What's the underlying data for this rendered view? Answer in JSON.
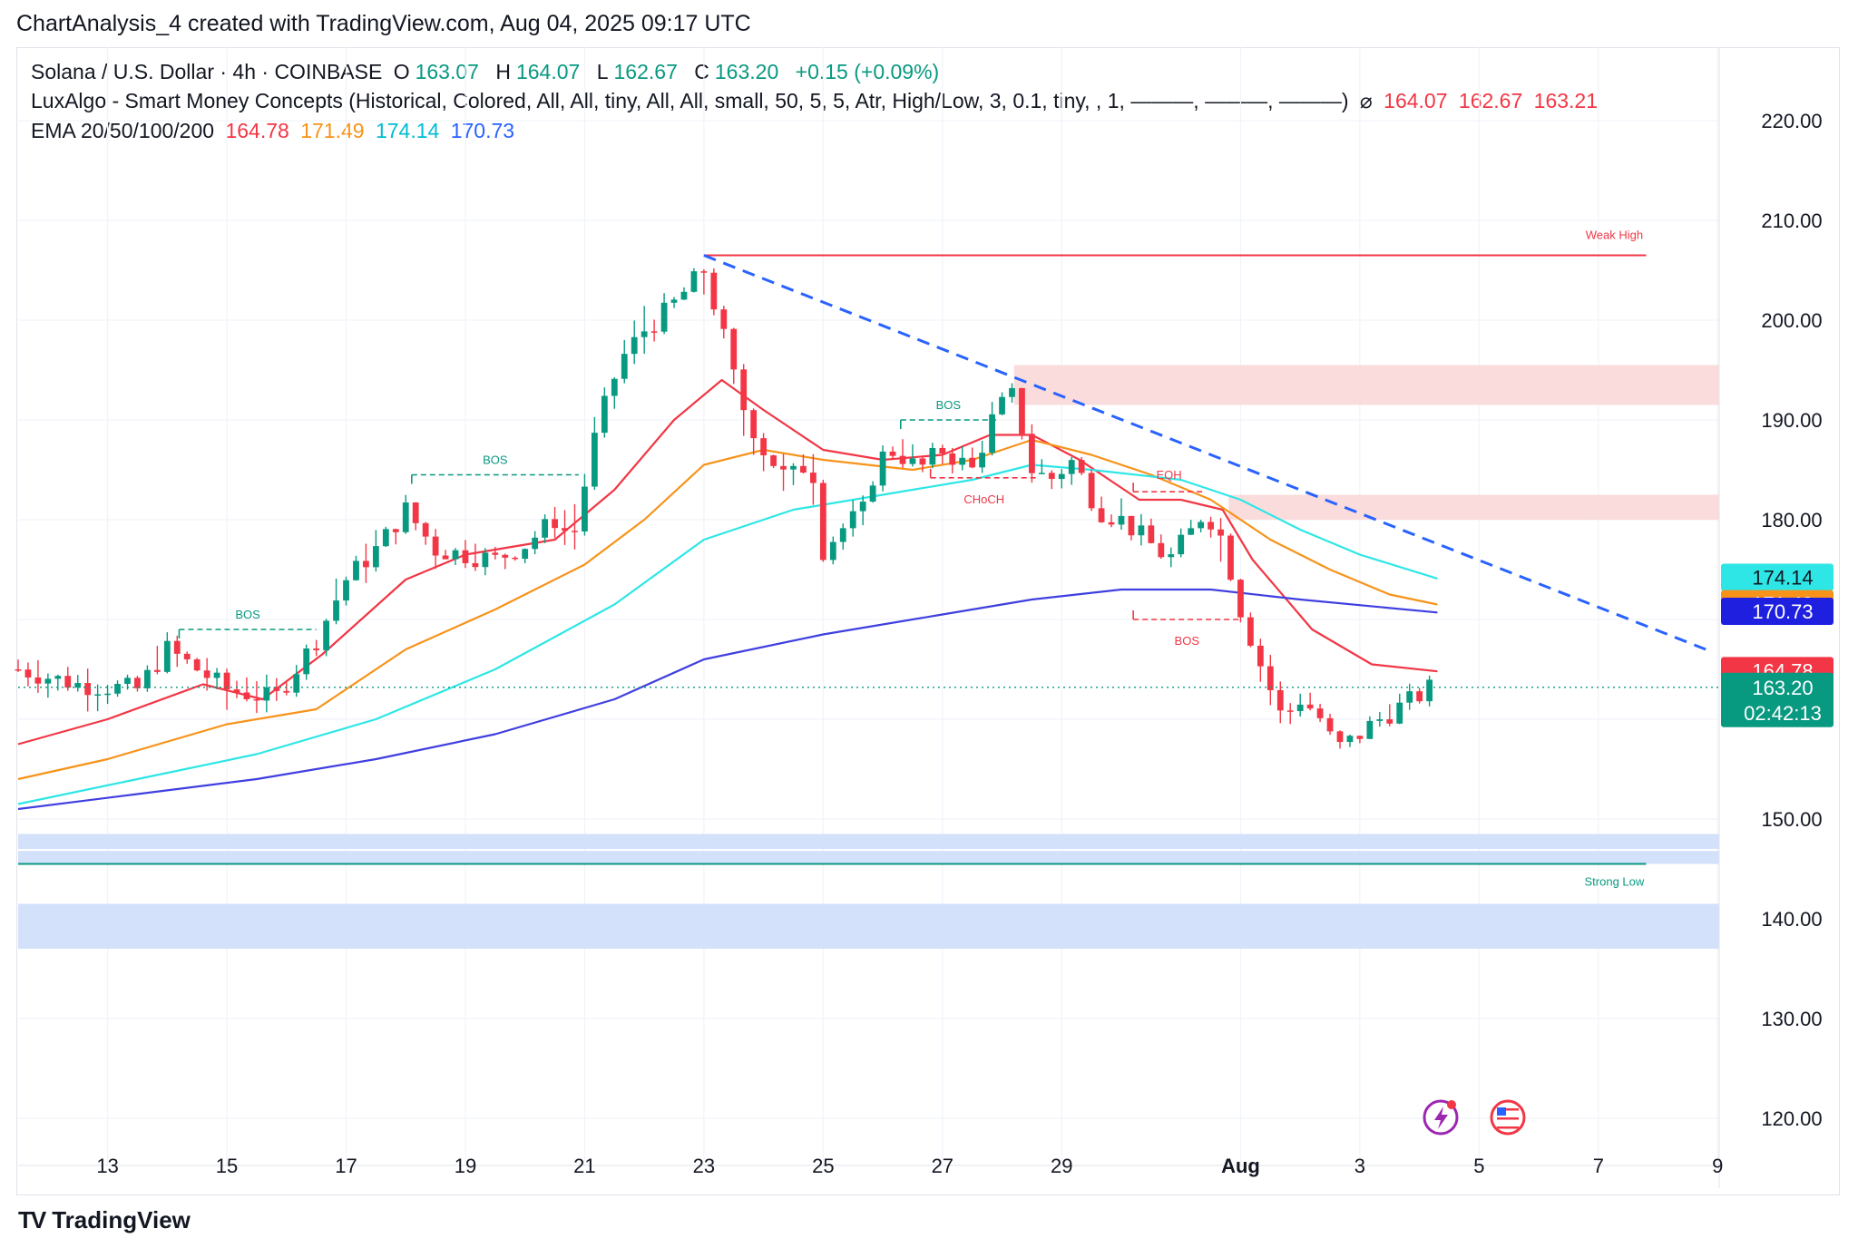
{
  "caption": "ChartAnalysis_4 created with TradingView.com, Aug 04, 2025 09:17 UTC",
  "legend": {
    "symbol": "Solana / U.S. Dollar · 4h · COINBASE",
    "o_label": "O",
    "o": "163.07",
    "h_label": "H",
    "h": "164.07",
    "l_label": "L",
    "l": "162.67",
    "c_label": "C",
    "c": "163.20",
    "chg": "+0.15 (+0.09%)",
    "indicator": "LuxAlgo - Smart Money Concepts (Historical, Colored, All, All, tiny, All, All, small, 50, 5, 5, Atr, High/Low, 3, 0.1, tiny, , 1, ———, ———, ———)",
    "ind_symbol": "⌀",
    "ind_v1": "164.07",
    "ind_v2": "162.67",
    "ind_v3": "163.21",
    "ema_label": "EMA 20/50/100/200",
    "ema20": "164.78",
    "ema50": "171.49",
    "ema100": "174.14",
    "ema200": "170.73"
  },
  "footer": {
    "logo": "TV",
    "brand": "TradingView"
  },
  "colors": {
    "up": "#089981",
    "down": "#f23645",
    "ema20": "#f23645",
    "ema50": "#f7931a",
    "ema100": "#2ee6e6",
    "ema200": "#3f3fe0",
    "trend": "#2962ff",
    "supply": "#fbdcdc",
    "demand": "#d4e1fb"
  },
  "chart_data": {
    "type": "candlestick",
    "symbol": "SOL/USD",
    "interval": "4h",
    "ylim": [
      116,
      225
    ],
    "y_ticks": [
      "220.00",
      "210.00",
      "200.00",
      "190.00",
      "180.00",
      "150.00",
      "140.00",
      "130.00",
      "120.00"
    ],
    "y_tick_values": [
      220,
      210,
      200,
      190,
      180,
      150,
      140,
      130,
      120
    ],
    "x_range": [
      11.5,
      39.95
    ],
    "x_ticks": [
      {
        "label": "13",
        "t": 13
      },
      {
        "label": "15",
        "t": 15
      },
      {
        "label": "17",
        "t": 17
      },
      {
        "label": "19",
        "t": 19
      },
      {
        "label": "21",
        "t": 21
      },
      {
        "label": "23",
        "t": 23
      },
      {
        "label": "25",
        "t": 25
      },
      {
        "label": "27",
        "t": 27
      },
      {
        "label": "29",
        "t": 29
      },
      {
        "label": "Aug",
        "t": 32
      },
      {
        "label": "3",
        "t": 34
      },
      {
        "label": "5",
        "t": 36
      },
      {
        "label": "7",
        "t": 38
      },
      {
        "label": "9",
        "t": 40
      }
    ],
    "anchors": [
      [
        11.5,
        165,
        167.5,
        162
      ],
      [
        12.5,
        163.5,
        166,
        160
      ],
      [
        13.5,
        163,
        165,
        160
      ],
      [
        14.0,
        167,
        170.5,
        165
      ],
      [
        15.0,
        163,
        166,
        159.5
      ],
      [
        15.8,
        162,
        165,
        160
      ],
      [
        16.5,
        168,
        170.5,
        165.5
      ],
      [
        17.0,
        174,
        178,
        171
      ],
      [
        17.5,
        177,
        180,
        172.5
      ],
      [
        18.0,
        181,
        183,
        177
      ],
      [
        18.5,
        177,
        182,
        174
      ],
      [
        19.5,
        176,
        178,
        174
      ],
      [
        20.0,
        177.5,
        180,
        175
      ],
      [
        20.5,
        180,
        182,
        177
      ],
      [
        20.8,
        178,
        182,
        175
      ],
      [
        21.2,
        189,
        192,
        186
      ],
      [
        21.6,
        196,
        199,
        192
      ],
      [
        22.0,
        199,
        203,
        195
      ],
      [
        22.4,
        201,
        204,
        197
      ],
      [
        22.7,
        203,
        205,
        200
      ],
      [
        23.0,
        205,
        206.5,
        200
      ],
      [
        23.3,
        199,
        201,
        197
      ],
      [
        23.6,
        192,
        196,
        185
      ],
      [
        24.0,
        187,
        190,
        182
      ],
      [
        24.4,
        184,
        189,
        179
      ],
      [
        24.8,
        186,
        190,
        181
      ],
      [
        25.0,
        177,
        180,
        175
      ],
      [
        25.3,
        179,
        182,
        176
      ],
      [
        25.7,
        181,
        183,
        176
      ],
      [
        25.9,
        186,
        188,
        183
      ],
      [
        26.2,
        187,
        189,
        185
      ],
      [
        26.6,
        185,
        189,
        184
      ],
      [
        27.0,
        187,
        188,
        184
      ],
      [
        27.5,
        185,
        190,
        184
      ],
      [
        27.9,
        191,
        193,
        189
      ],
      [
        28.2,
        192.5,
        195.5,
        189
      ],
      [
        28.5,
        185,
        190,
        183
      ],
      [
        28.8,
        184,
        187,
        181
      ],
      [
        29.2,
        186,
        188,
        182
      ],
      [
        29.6,
        181,
        184,
        180
      ],
      [
        30.0,
        180,
        183,
        179
      ],
      [
        30.4,
        178,
        181,
        176
      ],
      [
        30.8,
        176,
        179,
        171
      ],
      [
        31.2,
        179,
        181,
        176
      ],
      [
        31.4,
        181,
        183,
        178
      ],
      [
        31.7,
        178,
        182,
        174
      ],
      [
        32.0,
        171,
        174,
        168
      ],
      [
        32.3,
        166,
        171,
        163
      ],
      [
        32.7,
        160,
        166,
        158
      ],
      [
        33.0,
        162,
        164,
        159
      ],
      [
        33.3,
        160.5,
        163,
        158
      ],
      [
        33.6,
        157,
        160,
        155.5
      ],
      [
        33.9,
        158,
        161,
        156
      ],
      [
        34.2,
        159.5,
        162,
        158
      ],
      [
        34.6,
        161,
        163,
        159
      ],
      [
        34.9,
        162,
        164.5,
        161
      ],
      [
        35.2,
        163.2,
        164.1,
        162.7
      ]
    ],
    "ema": {
      "ema20": [
        [
          11.5,
          157.5
        ],
        [
          13,
          160
        ],
        [
          14.6,
          163.5
        ],
        [
          15.6,
          162
        ],
        [
          16.6,
          166.5
        ],
        [
          18,
          174
        ],
        [
          19,
          176.5
        ],
        [
          20.5,
          178
        ],
        [
          21.5,
          183
        ],
        [
          22.5,
          190
        ],
        [
          23.3,
          194
        ],
        [
          24,
          191
        ],
        [
          25,
          187
        ],
        [
          26,
          186
        ],
        [
          27,
          186.5
        ],
        [
          27.8,
          188.5
        ],
        [
          28.5,
          188.5
        ],
        [
          29.3,
          186
        ],
        [
          30.3,
          182
        ],
        [
          31,
          182
        ],
        [
          31.7,
          181
        ],
        [
          32.2,
          176
        ],
        [
          33.2,
          169
        ],
        [
          34.2,
          165.5
        ],
        [
          35.3,
          164.8
        ]
      ],
      "ema50": [
        [
          11.5,
          154
        ],
        [
          13,
          156
        ],
        [
          15,
          159.5
        ],
        [
          16.5,
          161
        ],
        [
          18,
          167
        ],
        [
          19.5,
          171
        ],
        [
          21,
          175.5
        ],
        [
          22,
          180
        ],
        [
          23,
          185.5
        ],
        [
          24,
          187
        ],
        [
          25,
          186
        ],
        [
          26.5,
          185
        ],
        [
          27.5,
          186
        ],
        [
          28.5,
          188
        ],
        [
          29.5,
          186.5
        ],
        [
          30.5,
          184.5
        ],
        [
          31.5,
          182
        ],
        [
          32.5,
          178
        ],
        [
          33.5,
          175
        ],
        [
          34.5,
          172.5
        ],
        [
          35.3,
          171.5
        ]
      ],
      "ema100": [
        [
          11.5,
          151.5
        ],
        [
          13.5,
          154
        ],
        [
          15.5,
          156.5
        ],
        [
          17.5,
          160
        ],
        [
          19.5,
          165
        ],
        [
          21.5,
          171.5
        ],
        [
          23,
          178
        ],
        [
          24.5,
          181
        ],
        [
          26,
          182.5
        ],
        [
          27.5,
          184
        ],
        [
          28.5,
          185.5
        ],
        [
          29.5,
          185
        ],
        [
          31,
          184
        ],
        [
          32,
          182
        ],
        [
          33,
          179
        ],
        [
          34,
          176.5
        ],
        [
          35.3,
          174.1
        ]
      ],
      "ema200": [
        [
          11.5,
          151
        ],
        [
          13.5,
          152.5
        ],
        [
          15.5,
          154
        ],
        [
          17.5,
          156
        ],
        [
          19.5,
          158.5
        ],
        [
          21.5,
          162
        ],
        [
          23,
          166
        ],
        [
          25,
          168.5
        ],
        [
          27,
          170.5
        ],
        [
          28.5,
          172
        ],
        [
          30,
          173
        ],
        [
          31.5,
          173
        ],
        [
          33,
          172
        ],
        [
          35.3,
          170.7
        ]
      ]
    },
    "trendline": {
      "from": [
        23.0,
        206.5
      ],
      "to": [
        39.8,
        167
      ]
    },
    "weak_high": {
      "price": 206.5,
      "x_from": 23.0,
      "x_to": 38.8,
      "label": "Weak High"
    },
    "strong_low": {
      "price": 145.5,
      "x_from": 11.5,
      "x_to": 38.8,
      "label": "Strong Low"
    },
    "zones": [
      {
        "kind": "supply",
        "x_from": 28.2,
        "y_top": 195.5,
        "y_bottom": 191.5
      },
      {
        "kind": "supply",
        "x_from": 31.8,
        "y_top": 182.5,
        "y_bottom": 180
      },
      {
        "kind": "demand",
        "x_from": 11.5,
        "y_top": 148.5,
        "y_bottom": 147
      },
      {
        "kind": "demand",
        "x_from": 11.5,
        "y_top": 146.8,
        "y_bottom": 145.5
      },
      {
        "kind": "demand",
        "x_from": 11.5,
        "y_top": 141.5,
        "y_bottom": 137
      }
    ],
    "structure": [
      {
        "label": "BOS",
        "kind": "bull",
        "x_from": 14.2,
        "x_to": 16.5,
        "price": 169
      },
      {
        "label": "BOS",
        "kind": "bull",
        "x_from": 18.1,
        "x_to": 20.9,
        "price": 184.5
      },
      {
        "label": "BOS",
        "kind": "bull",
        "x_from": 26.3,
        "x_to": 27.9,
        "price": 190
      },
      {
        "label": "CHoCH",
        "kind": "bear",
        "x_from": 26.8,
        "x_to": 28.6,
        "price": 184.2
      },
      {
        "label": "EQH",
        "kind": "bear",
        "x_from": 30.2,
        "x_to": 31.4,
        "price": 182.8
      },
      {
        "label": "BOS",
        "kind": "bear",
        "x_from": 30.2,
        "x_to": 32.0,
        "price": 170
      }
    ],
    "current_price": 163.2,
    "price_badges": [
      {
        "text": "174.14",
        "price": 174.14,
        "bg": "#2ee6e6",
        "fg": "#131722"
      },
      {
        "text": "171.49",
        "price": 171.49,
        "bg": "#f7931a",
        "fg": "#ffffff"
      },
      {
        "text": "170.73",
        "price": 170.73,
        "bg": "#1f1fe0",
        "fg": "#ffffff"
      },
      {
        "text": "164.78",
        "price": 164.78,
        "bg": "#f23645",
        "fg": "#ffffff"
      },
      {
        "text": "163.21",
        "price": 163.21,
        "bg": "#f23645",
        "fg": "#ffffff"
      }
    ],
    "last_price": {
      "text": "163.20",
      "countdown": "02:42:13",
      "bg": "#089981"
    }
  }
}
